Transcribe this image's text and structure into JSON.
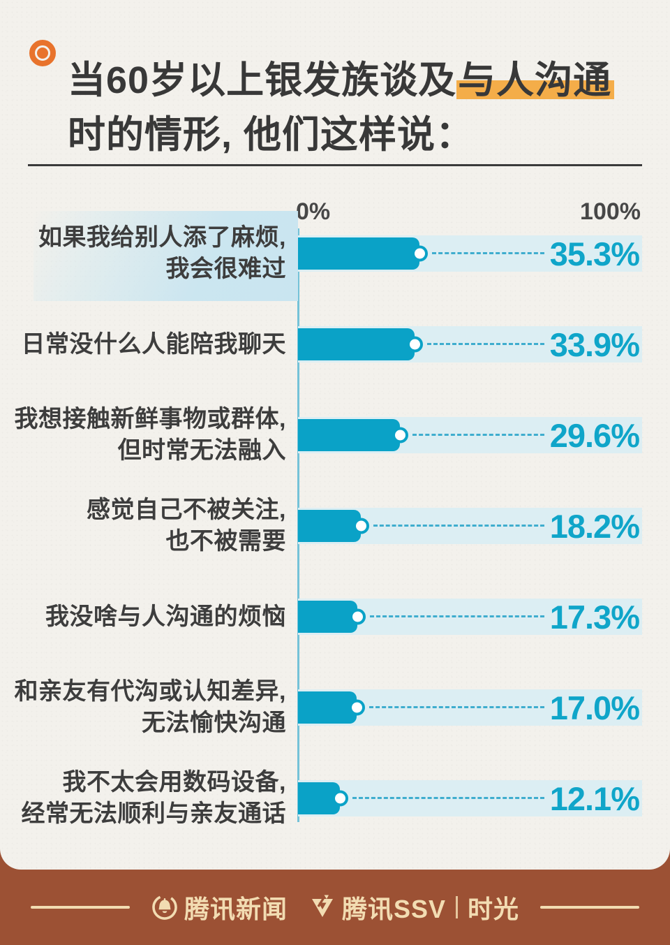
{
  "title": {
    "line1_pre": "当60岁以上银发族谈及",
    "line1_highlight": "与人沟通",
    "line2": "时的情形, 他们这样说："
  },
  "chart_data": {
    "type": "bar",
    "orientation": "horizontal",
    "title": "当60岁以上银发族谈及与人沟通时的情形, 他们这样说：",
    "xlabel": "",
    "ylabel": "",
    "axis": {
      "min_label": "0%",
      "max_label": "100%",
      "range": [
        0,
        100
      ],
      "grid": false
    },
    "categories": [
      "如果我给别人添了麻烦,我会很难过",
      "日常没什么人能陪我聊天",
      "我想接触新鲜事物或群体,但时常无法融入",
      "感觉自己不被关注,也不被需要",
      "我没啥与人沟通的烦恼",
      "和亲友有代沟或认知差异,无法愉快沟通",
      "我不太会用数码设备,经常无法顺利与亲友通话"
    ],
    "values": [
      35.3,
      33.9,
      29.6,
      18.2,
      17.3,
      17.0,
      12.1
    ],
    "rows": [
      {
        "label_lines": [
          "如果我给别人添了麻烦,",
          "我会很难过"
        ],
        "value": 35.3,
        "value_label": "35.3%",
        "label_highlighted": true
      },
      {
        "label_lines": [
          "日常没什么人能陪我聊天"
        ],
        "value": 33.9,
        "value_label": "33.9%",
        "label_highlighted": false
      },
      {
        "label_lines": [
          "我想接触新鲜事物或群体,",
          "但时常无法融入"
        ],
        "value": 29.6,
        "value_label": "29.6%",
        "label_highlighted": false
      },
      {
        "label_lines": [
          "感觉自己不被关注,",
          "也不被需要"
        ],
        "value": 18.2,
        "value_label": "18.2%",
        "label_highlighted": false
      },
      {
        "label_lines": [
          "我没啥与人沟通的烦恼"
        ],
        "value": 17.3,
        "value_label": "17.3%",
        "label_highlighted": false
      },
      {
        "label_lines": [
          "和亲友有代沟或认知差异,",
          "无法愉快沟通"
        ],
        "value": 17.0,
        "value_label": "17.0%",
        "label_highlighted": false
      },
      {
        "label_lines": [
          "我不太会用数码设备,",
          "经常无法顺利与亲友通话"
        ],
        "value": 12.1,
        "value_label": "12.1%",
        "label_highlighted": false
      }
    ],
    "colors": {
      "bar": "#0aa2c7",
      "track": "#dceef3",
      "value_text": "#0fa5c9",
      "axis_line": "#74c2d8",
      "label_highlight_bg": "#c9e5f0",
      "title_highlight": "#f4ad49",
      "bullet_icon": "#e8732c",
      "paper": "#f3f1ec",
      "footer_bg": "#9c5134",
      "footer_fg": "#f2dcb2"
    },
    "legend": null
  },
  "footer": {
    "logo1_text": "腾讯新闻",
    "logo2_text": "腾讯SSV",
    "logo2_suffix": "时光"
  }
}
